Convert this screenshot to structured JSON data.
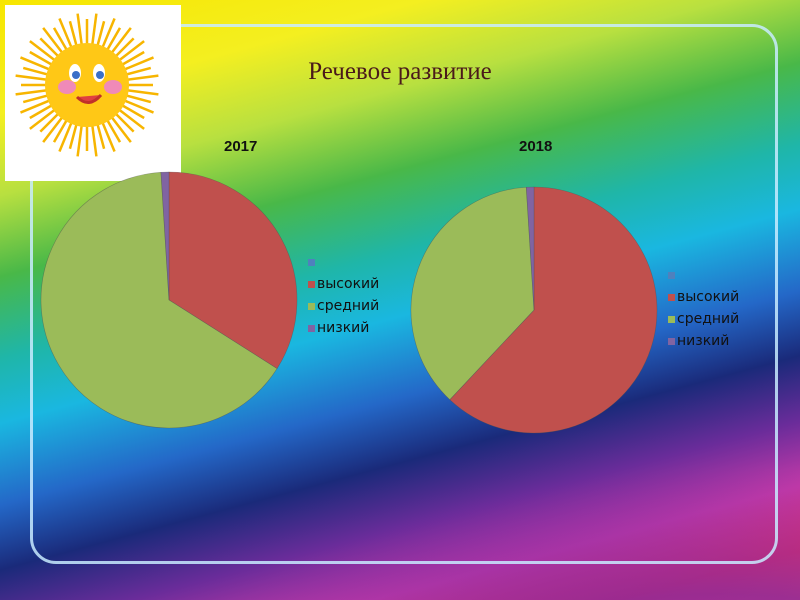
{
  "title": "Речевое развитие",
  "colors": {
    "blank": "#4f81bd",
    "высокий": "#c0504d",
    "средний": "#9bbb59",
    "низкий": "#8064a2"
  },
  "chart_data": [
    {
      "type": "pie",
      "title": "2017",
      "categories": [
        "высокий",
        "средний",
        "низкий"
      ],
      "values": [
        34,
        65,
        1
      ],
      "legend": [
        "",
        "высокий",
        "средний",
        "низкий"
      ],
      "legend_position": "right"
    },
    {
      "type": "pie",
      "title": "2018",
      "categories": [
        "высокий",
        "средний",
        "низкий"
      ],
      "values": [
        62,
        37,
        1
      ],
      "legend": [
        "",
        "высокий",
        "средний",
        "низкий"
      ],
      "legend_position": "right"
    }
  ]
}
